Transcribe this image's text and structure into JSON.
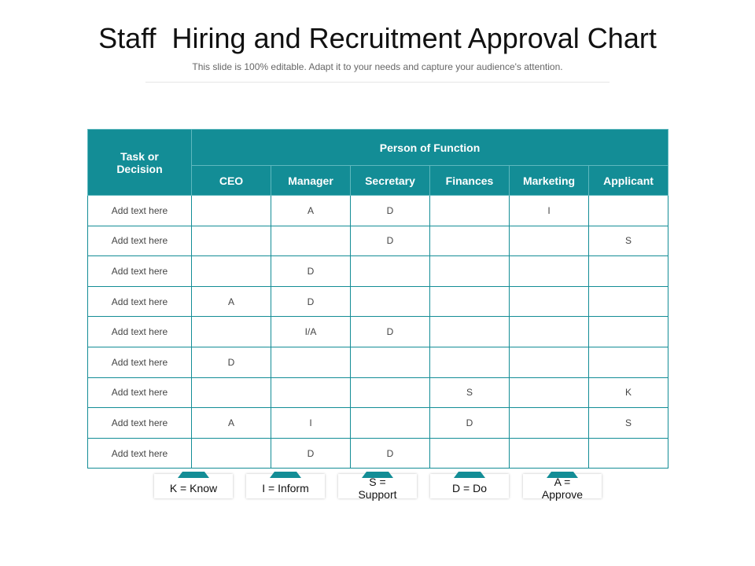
{
  "title": "Staff  Hiring and Recruitment Approval Chart",
  "subtitle": "This slide is 100% editable. Adapt it to your needs and capture your audience's attention.",
  "table": {
    "header": {
      "task": "Task or Decision",
      "group": "Person of Function",
      "columns": [
        "CEO",
        "Manager",
        "Secretary",
        "Finances",
        "Marketing",
        "Applicant"
      ]
    },
    "rows": [
      [
        "Add text here",
        null,
        "A",
        "D",
        null,
        "I",
        null
      ],
      [
        "Add text here",
        null,
        null,
        "D",
        null,
        null,
        "S"
      ],
      [
        "Add text here",
        null,
        "D",
        null,
        null,
        null,
        null
      ],
      [
        "Add text here",
        "A",
        "D",
        null,
        null,
        null,
        null
      ],
      [
        "Add text here",
        null,
        "I/A",
        "D",
        null,
        null,
        null
      ],
      [
        "Add text here",
        "D",
        null,
        null,
        null,
        null,
        null
      ],
      [
        "Add text here",
        null,
        null,
        null,
        "S",
        null,
        "K"
      ],
      [
        "Add text here",
        "A",
        "I",
        null,
        "D",
        null,
        "S"
      ],
      [
        "Add text here",
        null,
        "D",
        "D",
        null,
        null,
        null
      ]
    ]
  },
  "legend": [
    "K = Know",
    "I = Inform",
    "S = Support",
    "D = Do",
    "A = Approve"
  ]
}
